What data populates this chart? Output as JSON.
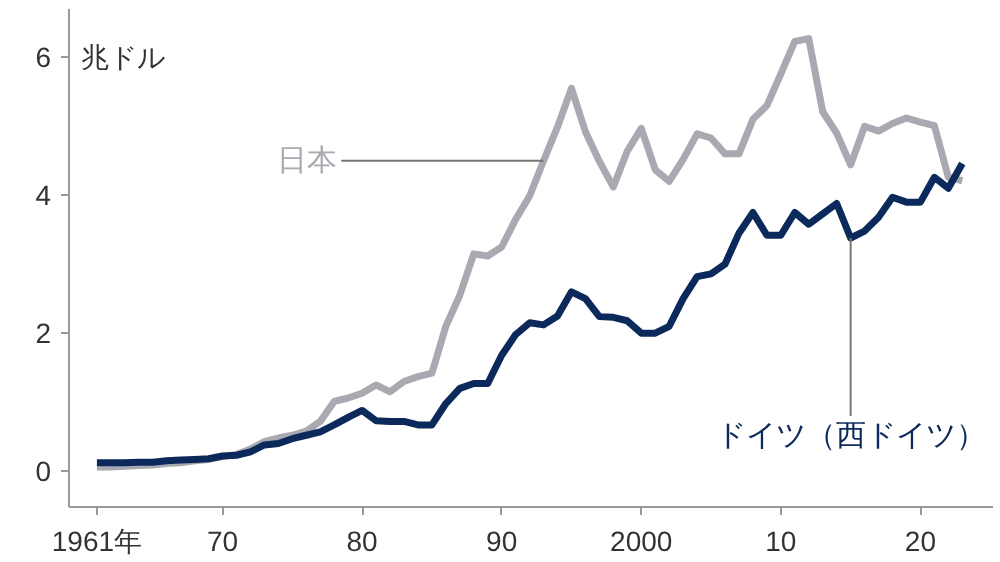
{
  "chart_data": {
    "type": "line",
    "ylabel": "兆ドル",
    "x": [
      1961,
      1962,
      1963,
      1964,
      1965,
      1966,
      1967,
      1968,
      1969,
      1970,
      1971,
      1972,
      1973,
      1974,
      1975,
      1976,
      1977,
      1978,
      1979,
      1980,
      1981,
      1982,
      1983,
      1984,
      1985,
      1986,
      1987,
      1988,
      1989,
      1990,
      1991,
      1992,
      1993,
      1994,
      1995,
      1996,
      1997,
      1998,
      1999,
      2000,
      2001,
      2002,
      2003,
      2004,
      2005,
      2006,
      2007,
      2008,
      2009,
      2010,
      2011,
      2012,
      2013,
      2014,
      2015,
      2016,
      2017,
      2018,
      2019,
      2020,
      2021,
      2022,
      2023
    ],
    "series": [
      {
        "name": "日本",
        "color": "#a9a9b1",
        "values": [
          0.06,
          0.06,
          0.07,
          0.08,
          0.09,
          0.11,
          0.12,
          0.15,
          0.17,
          0.21,
          0.24,
          0.32,
          0.43,
          0.48,
          0.52,
          0.58,
          0.72,
          1.01,
          1.06,
          1.13,
          1.25,
          1.15,
          1.3,
          1.37,
          1.42,
          2.1,
          2.55,
          3.15,
          3.12,
          3.25,
          3.65,
          3.99,
          4.5,
          4.99,
          5.55,
          4.92,
          4.49,
          4.12,
          4.64,
          4.97,
          4.37,
          4.2,
          4.52,
          4.89,
          4.83,
          4.6,
          4.6,
          5.1,
          5.3,
          5.76,
          6.23,
          6.27,
          5.21,
          4.9,
          4.44,
          5.0,
          4.93,
          5.04,
          5.12,
          5.06,
          5.01,
          4.26,
          4.21
        ]
      },
      {
        "name": "ドイツ（西ドイツ）",
        "color": "#0b2a5b",
        "values": [
          0.12,
          0.12,
          0.12,
          0.13,
          0.13,
          0.15,
          0.16,
          0.17,
          0.18,
          0.22,
          0.23,
          0.28,
          0.38,
          0.4,
          0.47,
          0.52,
          0.57,
          0.67,
          0.78,
          0.88,
          0.73,
          0.72,
          0.72,
          0.67,
          0.67,
          0.98,
          1.2,
          1.27,
          1.27,
          1.68,
          1.98,
          2.15,
          2.12,
          2.25,
          2.6,
          2.5,
          2.24,
          2.23,
          2.18,
          2.0,
          2.0,
          2.1,
          2.5,
          2.82,
          2.86,
          3.0,
          3.45,
          3.75,
          3.42,
          3.42,
          3.75,
          3.58,
          3.73,
          3.88,
          3.38,
          3.48,
          3.68,
          3.97,
          3.9,
          3.9,
          4.26,
          4.1,
          4.46
        ]
      }
    ],
    "xlim": [
      1959,
      2025.2
    ],
    "ylim": [
      -0.52,
      6.7
    ],
    "xticks": [
      {
        "value": 1961,
        "label": "1961年"
      },
      {
        "value": 1970,
        "label": "70"
      },
      {
        "value": 1980,
        "label": "80"
      },
      {
        "value": 1990,
        "label": "90"
      },
      2000,
      {
        "value": 2010,
        "label": "10"
      },
      {
        "value": 2020,
        "label": "20"
      }
    ],
    "yticks": [
      0,
      2,
      4,
      6
    ],
    "grid": false,
    "marker": "none",
    "line_style": "solid"
  }
}
